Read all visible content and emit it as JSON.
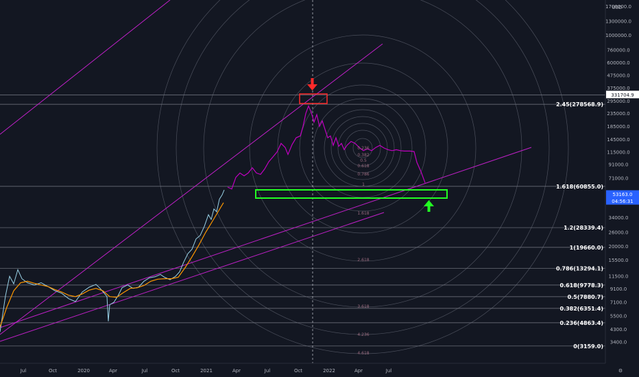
{
  "chart_data": {
    "type": "line",
    "title": "",
    "xlabel": "",
    "ylabel": "",
    "currency": "USD",
    "scale": "log",
    "ylim": [
      3000,
      1700000
    ],
    "x_ticks": [
      "Jul",
      "Oct",
      "2020",
      "Apr",
      "Jul",
      "Oct",
      "2021",
      "Apr",
      "Jul",
      "Oct",
      "2022",
      "Apr",
      "Jul"
    ],
    "y_ticks": [
      "1700000.0",
      "1300000.0",
      "1000000.0",
      "760000.0",
      "600000.0",
      "475000.0",
      "375000.0",
      "295000.0",
      "235000.0",
      "185000.0",
      "145000.0",
      "115000.0",
      "91000.0",
      "71000.0",
      "34000.0",
      "26000.0",
      "20000.0",
      "15500.0",
      "11500.0",
      "9100.0",
      "7100.0",
      "5500.0",
      "4300.0",
      "3400.0"
    ],
    "fib_levels": [
      {
        "label": "2.45(278568.9)",
        "value": 278568.9
      },
      {
        "label": "1.618(60855.0)",
        "value": 60855.0
      },
      {
        "label": "1.2(28339.4)",
        "value": 28339.4
      },
      {
        "label": "1(19660.0)",
        "value": 19660.0
      },
      {
        "label": "0.786(13294.1)",
        "value": 13294.1
      },
      {
        "label": "0.618(9778.3)",
        "value": 9778.3
      },
      {
        "label": "0.5(7880.7)",
        "value": 7880.7
      },
      {
        "label": "0.382(6351.4)",
        "value": 6351.4
      },
      {
        "label": "0.236(4863.4)",
        "value": 4863.4
      },
      {
        "label": "0(3159.0)",
        "value": 3159.0
      }
    ],
    "fan_labels": [
      "0.236",
      "0.382",
      "0.5",
      "0.618",
      "0.786",
      "1",
      "1.618",
      "2.618",
      "3.618",
      "4.236",
      "4.618"
    ],
    "price_tags": [
      {
        "label": "331704.9",
        "value": 331704.9,
        "color": "#ffffff"
      },
      {
        "label": "53163.0",
        "value": 53163.0,
        "color": "#2962ff"
      },
      {
        "label": "04:56:31",
        "value": 53163.0,
        "color": "#2962ff"
      }
    ],
    "series": [
      {
        "values": [
          [
            0,
            4100
          ],
          [
            8,
            8000
          ],
          [
            14,
            11500
          ],
          [
            20,
            10000
          ],
          [
            26,
            13000
          ],
          [
            32,
            11000
          ],
          [
            40,
            10200
          ],
          [
            50,
            9800
          ],
          [
            60,
            10200
          ],
          [
            70,
            9500
          ],
          [
            80,
            8800
          ],
          [
            90,
            8400
          ],
          [
            100,
            7600
          ],
          [
            110,
            7200
          ],
          [
            120,
            8600
          ],
          [
            130,
            9400
          ],
          [
            140,
            9900
          ],
          [
            146,
            9200
          ],
          [
            152,
            8400
          ],
          [
            156,
            7900
          ],
          [
            158,
            5000
          ],
          [
            160,
            6800
          ],
          [
            166,
            7100
          ],
          [
            172,
            8000
          ],
          [
            178,
            9300
          ],
          [
            186,
            9800
          ],
          [
            194,
            9200
          ],
          [
            202,
            9400
          ],
          [
            210,
            10500
          ],
          [
            218,
            11200
          ],
          [
            226,
            11400
          ],
          [
            234,
            11900
          ],
          [
            240,
            11300
          ],
          [
            248,
            10800
          ],
          [
            256,
            11500
          ],
          [
            262,
            12500
          ],
          [
            268,
            15000
          ],
          [
            274,
            17500
          ],
          [
            280,
            19000
          ],
          [
            286,
            23000
          ],
          [
            292,
            24500
          ],
          [
            298,
            29000
          ],
          [
            304,
            36000
          ],
          [
            308,
            33000
          ],
          [
            312,
            40000
          ],
          [
            316,
            38000
          ],
          [
            320,
            48000
          ],
          [
            324,
            52000
          ],
          [
            327,
            57000
          ]
        ],
        "color": "#9ad3e8"
      },
      {
        "values": [
          [
            0,
            4500
          ],
          [
            10,
            6500
          ],
          [
            20,
            8800
          ],
          [
            30,
            10200
          ],
          [
            40,
            10500
          ],
          [
            50,
            10100
          ],
          [
            60,
            9800
          ],
          [
            70,
            9500
          ],
          [
            80,
            9000
          ],
          [
            90,
            8600
          ],
          [
            100,
            8100
          ],
          [
            110,
            7900
          ],
          [
            120,
            8300
          ],
          [
            130,
            8900
          ],
          [
            140,
            9200
          ],
          [
            150,
            8800
          ],
          [
            160,
            7900
          ],
          [
            170,
            7800
          ],
          [
            180,
            8500
          ],
          [
            190,
            9200
          ],
          [
            200,
            9300
          ],
          [
            210,
            9700
          ],
          [
            220,
            10500
          ],
          [
            230,
            10900
          ],
          [
            240,
            11000
          ],
          [
            250,
            11000
          ],
          [
            260,
            11300
          ],
          [
            270,
            13500
          ],
          [
            280,
            16500
          ],
          [
            290,
            20500
          ],
          [
            300,
            26000
          ],
          [
            310,
            32000
          ],
          [
            318,
            38000
          ],
          [
            326,
            45000
          ]
        ],
        "color": "#ff9800"
      },
      {
        "values": [
          [
            332,
            60000
          ],
          [
            338,
            58000
          ],
          [
            344,
            72000
          ],
          [
            350,
            78000
          ],
          [
            356,
            74000
          ],
          [
            362,
            78000
          ],
          [
            368,
            86000
          ],
          [
            374,
            78000
          ],
          [
            380,
            76000
          ],
          [
            386,
            84000
          ],
          [
            392,
            96000
          ],
          [
            398,
            105000
          ],
          [
            404,
            115000
          ],
          [
            410,
            135000
          ],
          [
            416,
            125000
          ],
          [
            420,
            110000
          ],
          [
            426,
            132000
          ],
          [
            432,
            150000
          ],
          [
            438,
            155000
          ],
          [
            442,
            185000
          ],
          [
            446,
            235000
          ],
          [
            450,
            270000
          ],
          [
            454,
            240000
          ],
          [
            458,
            200000
          ],
          [
            462,
            230000
          ],
          [
            466,
            185000
          ],
          [
            470,
            205000
          ],
          [
            474,
            175000
          ],
          [
            478,
            150000
          ],
          [
            482,
            155000
          ],
          [
            486,
            130000
          ],
          [
            490,
            150000
          ],
          [
            494,
            128000
          ],
          [
            498,
            135000
          ],
          [
            502,
            120000
          ],
          [
            506,
            130000
          ],
          [
            512,
            140000
          ],
          [
            518,
            135000
          ],
          [
            524,
            125000
          ],
          [
            530,
            118000
          ],
          [
            536,
            122000
          ],
          [
            542,
            118000
          ],
          [
            548,
            125000
          ],
          [
            554,
            130000
          ],
          [
            560,
            124000
          ],
          [
            566,
            120000
          ],
          [
            572,
            118000
          ],
          [
            578,
            120000
          ],
          [
            584,
            118000
          ],
          [
            590,
            117000
          ],
          [
            598,
            117000
          ],
          [
            604,
            116000
          ],
          [
            608,
            95000
          ],
          [
            614,
            80000
          ],
          [
            620,
            65000
          ]
        ],
        "color": "#c000c0"
      }
    ]
  }
}
